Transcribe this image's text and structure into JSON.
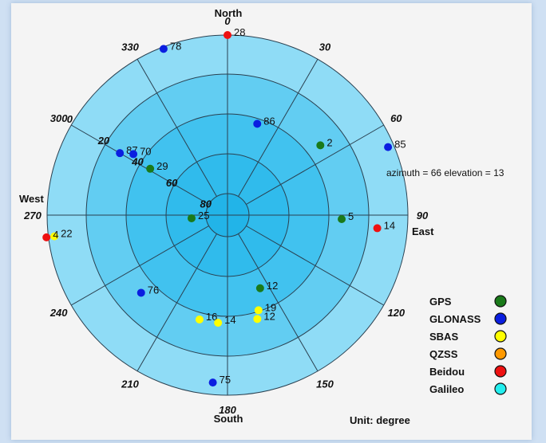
{
  "chart_data": {
    "type": "scatter",
    "projection": "polar-skyplot",
    "directions": {
      "north": "North",
      "east": "East",
      "south": "South",
      "west": "West"
    },
    "azimuth_ticks": [
      {
        "value": 0,
        "label": "0"
      },
      {
        "value": 30,
        "label": "30"
      },
      {
        "value": 60,
        "label": "60"
      },
      {
        "value": 90,
        "label": "90"
      },
      {
        "value": 120,
        "label": "120"
      },
      {
        "value": 150,
        "label": "150"
      },
      {
        "value": 180,
        "label": "180"
      },
      {
        "value": 210,
        "label": "210"
      },
      {
        "value": 240,
        "label": "240"
      },
      {
        "value": 270,
        "label": "270"
      },
      {
        "value": 300,
        "label": "300"
      },
      {
        "value": 330,
        "label": "330"
      }
    ],
    "elevation_rings": [
      {
        "value": 0,
        "label": "0"
      },
      {
        "value": 20,
        "label": "20"
      },
      {
        "value": 40,
        "label": "40"
      },
      {
        "value": 60,
        "label": "60"
      },
      {
        "value": 80,
        "label": "80"
      }
    ],
    "readout": "azimuth = 66 elevation = 13",
    "unit_label": "Unit: degree",
    "legend": [
      {
        "name": "GPS",
        "color": "#1a7a1a"
      },
      {
        "name": "GLONASS",
        "color": "#0a1ee0"
      },
      {
        "name": "SBAS",
        "color": "#ffff00"
      },
      {
        "name": "QZSS",
        "color": "#ff9900"
      },
      {
        "name": "Beidou",
        "color": "#ee1111"
      },
      {
        "name": "Galileo",
        "color": "#22eeee"
      }
    ],
    "series": [
      {
        "name": "GPS",
        "points": [
          {
            "prn": "2",
            "azimuth": 53,
            "elevation": 32
          },
          {
            "prn": "5",
            "azimuth": 92,
            "elevation": 33
          },
          {
            "prn": "12",
            "azimuth": 156,
            "elevation": 50
          },
          {
            "prn": "29",
            "azimuth": 301,
            "elevation": 45
          },
          {
            "prn": "25",
            "azimuth": 265,
            "elevation": 72
          }
        ]
      },
      {
        "name": "GLONASS",
        "points": [
          {
            "prn": "78",
            "azimuth": 339,
            "elevation": 1
          },
          {
            "prn": "86",
            "azimuth": 18,
            "elevation": 42
          },
          {
            "prn": "85",
            "azimuth": 67,
            "elevation": 3
          },
          {
            "prn": "87",
            "azimuth": 300,
            "elevation": 28
          },
          {
            "prn": "70",
            "azimuth": 303,
            "elevation": 34
          },
          {
            "prn": "76",
            "azimuth": 228,
            "elevation": 32
          },
          {
            "prn": "75",
            "azimuth": 185,
            "elevation": 6
          }
        ]
      },
      {
        "name": "SBAS",
        "points": [
          {
            "prn": "22",
            "azimuth": 263,
            "elevation": 3
          },
          {
            "prn": "16",
            "azimuth": 195,
            "elevation": 36
          },
          {
            "prn": "14",
            "azimuth": 185,
            "elevation": 36
          },
          {
            "prn": "12",
            "azimuth": 164,
            "elevation": 36
          },
          {
            "prn": "19",
            "azimuth": 162,
            "elevation": 40
          }
        ]
      },
      {
        "name": "Beidou",
        "points": [
          {
            "prn": "28",
            "azimuth": 0,
            "elevation": 0
          },
          {
            "prn": "14",
            "azimuth": 95,
            "elevation": 15
          },
          {
            "prn": "4",
            "azimuth": 263,
            "elevation": -1
          }
        ]
      }
    ]
  }
}
